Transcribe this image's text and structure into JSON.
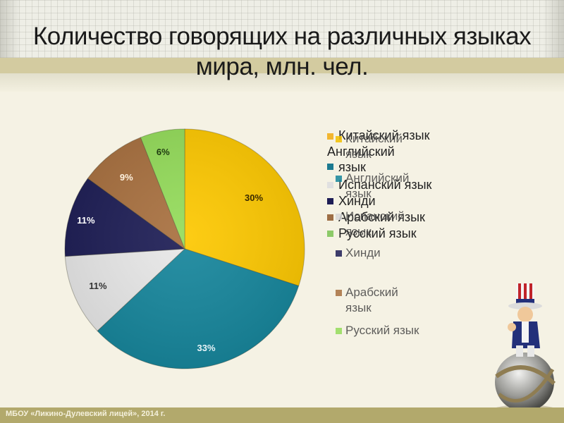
{
  "header": {
    "title_line1": "Количество говорящих на различных языках",
    "title_line2": "мира, млн. чел."
  },
  "chart_data": {
    "type": "pie",
    "title": "Количество говорящих на различных языках мира, млн. чел.",
    "categories": [
      "Китайский язык",
      "Английский язык",
      "Испанский язык",
      "Хинди",
      "Арабский язык",
      "Русский язык"
    ],
    "values": [
      30,
      33,
      11,
      11,
      9,
      6
    ],
    "labels": [
      "30%",
      "33%",
      "11%",
      "11%",
      "9%",
      "6%"
    ],
    "colors": [
      "#fdc800",
      "#16869c",
      "#e8e8e8",
      "#1d1d55",
      "#a8703f",
      "#94dc5a"
    ],
    "legend_position": "right",
    "start_angle": "12 o'clock, clockwise"
  },
  "legend_primary": [
    {
      "label": "Китайский язык",
      "color": "#f2b630"
    },
    {
      "label": "Английский язык",
      "color": "#1b7a90"
    },
    {
      "label": "Испанский язык",
      "color": "#e0e0e0"
    },
    {
      "label": "Хинди",
      "color": "#1d1d55"
    },
    {
      "label": "Арабский язык",
      "color": "#9e6e45"
    },
    {
      "label": "Русский язык",
      "color": "#8cca68"
    }
  ],
  "legend_secondary": [
    {
      "label_l1": "Китайский",
      "label_l2": "язык",
      "color": "#f2c000"
    },
    {
      "label_l1": "Английский",
      "label_l2": "язык",
      "color": "#16869c"
    },
    {
      "label_l1": "Испанский",
      "label_l2": "язык",
      "color": "#d8d8d8"
    },
    {
      "label_l1": "Хинди",
      "label_l2": "",
      "color": "#1d1d55"
    },
    {
      "label_l1": "Арабский",
      "label_l2": "язык",
      "color": "#a8703f"
    },
    {
      "label_l1": "Русский язык",
      "label_l2": "",
      "color": "#94dc5a"
    }
  ],
  "footer": {
    "text": "МБОУ «Ликино-Дулевский лицей», 2014 г."
  }
}
